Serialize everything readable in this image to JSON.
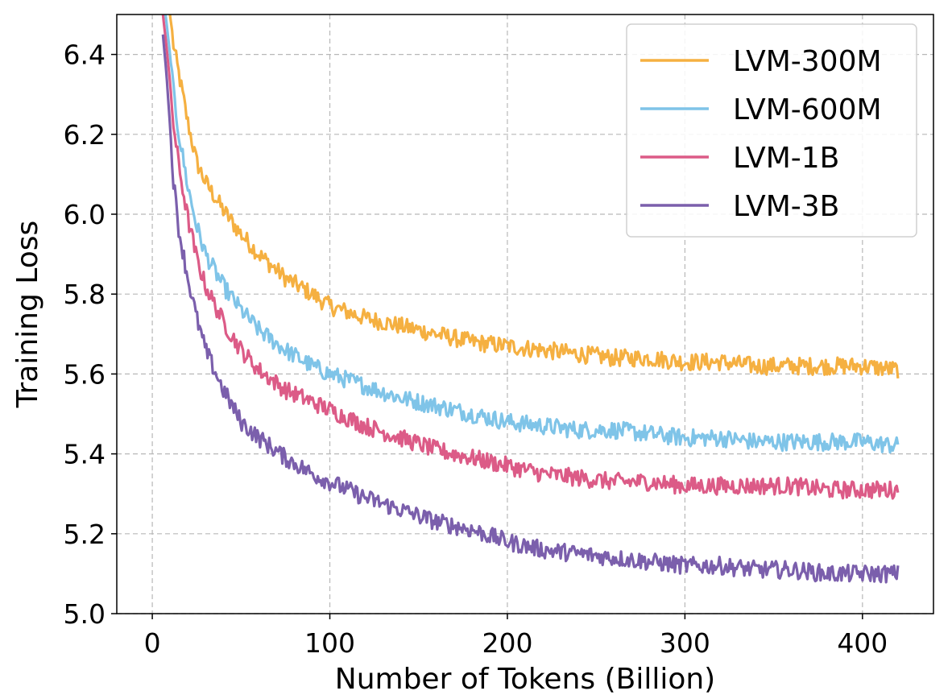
{
  "chart_data": {
    "type": "line",
    "title": "",
    "xlabel": "Number of Tokens (Billion)",
    "ylabel": "Training Loss",
    "xlim": [
      -20,
      440
    ],
    "ylim": [
      5.0,
      6.5
    ],
    "xticks": [
      0,
      100,
      200,
      300,
      400
    ],
    "xtick_labels": [
      "0",
      "100",
      "200",
      "300",
      "400"
    ],
    "yticks": [
      5.0,
      5.2,
      5.4,
      5.6,
      5.8,
      6.0,
      6.2,
      6.4
    ],
    "ytick_labels": [
      "5.0",
      "5.2",
      "5.4",
      "5.6",
      "5.8",
      "6.0",
      "6.2",
      "6.4"
    ],
    "grid": true,
    "legend_position": "top-right",
    "x": [
      6,
      8,
      10,
      12,
      15,
      20,
      25,
      30,
      40,
      50,
      60,
      75,
      90,
      100,
      120,
      140,
      160,
      180,
      200,
      220,
      240,
      260,
      280,
      300,
      320,
      340,
      360,
      380,
      400,
      420
    ],
    "series": [
      {
        "name": "LVM-300M",
        "color": "#f5b041",
        "values": [
          6.6,
          6.55,
          6.5,
          6.42,
          6.35,
          6.23,
          6.13,
          6.08,
          6.01,
          5.95,
          5.9,
          5.84,
          5.8,
          5.77,
          5.74,
          5.72,
          5.7,
          5.68,
          5.67,
          5.66,
          5.65,
          5.64,
          5.64,
          5.63,
          5.63,
          5.62,
          5.62,
          5.62,
          5.62,
          5.61
        ]
      },
      {
        "name": "LVM-600M",
        "color": "#7fc4e8",
        "values": [
          6.55,
          6.48,
          6.4,
          6.3,
          6.2,
          6.07,
          5.97,
          5.9,
          5.82,
          5.76,
          5.71,
          5.66,
          5.62,
          5.6,
          5.57,
          5.54,
          5.52,
          5.5,
          5.48,
          5.47,
          5.46,
          5.46,
          5.45,
          5.44,
          5.44,
          5.43,
          5.43,
          5.43,
          5.43,
          5.42
        ]
      },
      {
        "name": "LVM-1B",
        "color": "#dc5b87",
        "values": [
          6.5,
          6.42,
          6.33,
          6.22,
          6.12,
          5.99,
          5.89,
          5.82,
          5.73,
          5.66,
          5.61,
          5.56,
          5.53,
          5.51,
          5.47,
          5.44,
          5.41,
          5.39,
          5.37,
          5.35,
          5.34,
          5.33,
          5.33,
          5.32,
          5.32,
          5.32,
          5.32,
          5.31,
          5.31,
          5.31
        ]
      },
      {
        "name": "LVM-3B",
        "color": "#7b5fac",
        "values": [
          6.45,
          6.35,
          6.22,
          6.08,
          5.96,
          5.84,
          5.74,
          5.66,
          5.56,
          5.48,
          5.44,
          5.39,
          5.35,
          5.33,
          5.29,
          5.26,
          5.23,
          5.21,
          5.18,
          5.16,
          5.15,
          5.14,
          5.13,
          5.12,
          5.12,
          5.11,
          5.11,
          5.1,
          5.1,
          5.1
        ]
      }
    ],
    "noise_amplitude": 0.022
  }
}
